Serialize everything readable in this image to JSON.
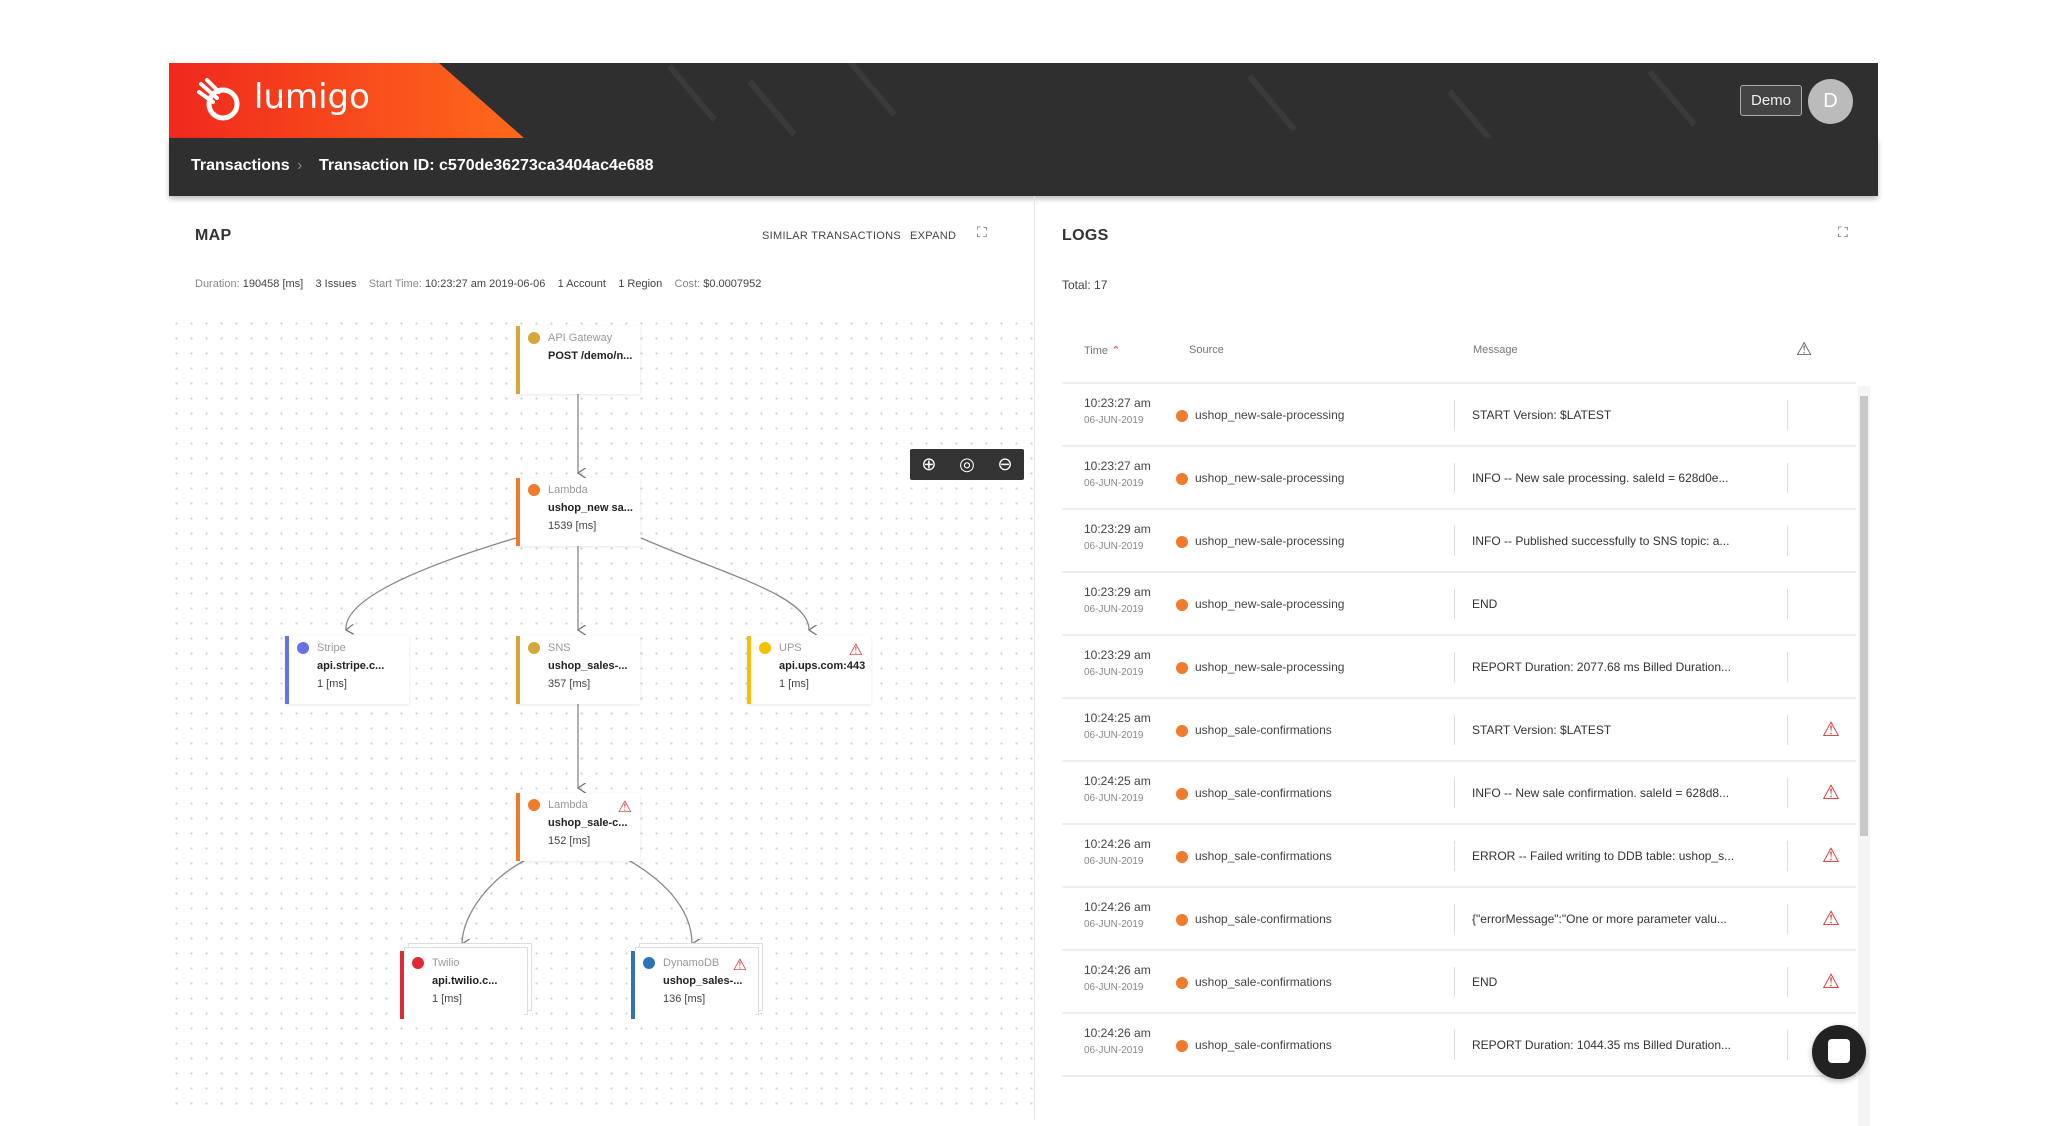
{
  "header": {
    "brand": "lumigo",
    "demo_label": "Demo",
    "avatar_initial": "D"
  },
  "breadcrumb": {
    "root": "Transactions",
    "separator": "›",
    "current": "Transaction ID: c570de36273ca3404ac4e688"
  },
  "map": {
    "title": "MAP",
    "similar_label": "SIMILAR TRANSACTIONS",
    "expand_label": "EXPAND",
    "stats": {
      "duration_label": "Duration:",
      "duration": "190458 [ms]",
      "issues": "3 Issues",
      "start_label": "Start Time:",
      "start": "10:23:27 am 2019-06-06",
      "accounts": "1 Account",
      "regions": "1 Region",
      "cost_label": "Cost:",
      "cost": "$0.0007952"
    },
    "nodes": [
      {
        "kind": "API Gateway",
        "name": "POST /demo/n...",
        "duration": "",
        "color": "#d9a63a",
        "warning": false
      },
      {
        "kind": "Lambda",
        "name": "ushop_new sa...",
        "duration": "1539 [ms]",
        "color": "#f07b2a",
        "warning": false
      },
      {
        "kind": "Stripe",
        "name": "api.stripe.c...",
        "duration": "1 [ms]",
        "color": "#6772e5",
        "warning": false
      },
      {
        "kind": "SNS",
        "name": "ushop_sales-...",
        "duration": "357 [ms]",
        "color": "#d9a63a",
        "warning": false
      },
      {
        "kind": "UPS",
        "name": "api.ups.com:443",
        "duration": "1 [ms]",
        "color": "#f5c000",
        "warning": true
      },
      {
        "kind": "Lambda",
        "name": "ushop_sale-c...",
        "duration": "152 [ms]",
        "color": "#f07b2a",
        "warning": true
      },
      {
        "kind": "Twilio",
        "name": "api.twilio.c...",
        "duration": "1 [ms]",
        "color": "#e02935",
        "warning": false
      },
      {
        "kind": "DynamoDB",
        "name": "ushop_sales-...",
        "duration": "136 [ms]",
        "color": "#2e73b8",
        "warning": true
      }
    ]
  },
  "logs": {
    "title": "LOGS",
    "total": "Total: 17",
    "columns": {
      "time": "Time",
      "source": "Source",
      "message": "Message"
    },
    "rows": [
      {
        "time": "10:23:27 am",
        "date": "06-JUN-2019",
        "source": "ushop_new-sale-processing",
        "message": "START Version: $LATEST",
        "warning": false
      },
      {
        "time": "10:23:27 am",
        "date": "06-JUN-2019",
        "source": "ushop_new-sale-processing",
        "message": "INFO -- New sale processing. saleId = 628d0e...",
        "warning": false
      },
      {
        "time": "10:23:29 am",
        "date": "06-JUN-2019",
        "source": "ushop_new-sale-processing",
        "message": "INFO -- Published successfully to SNS topic: a...",
        "warning": false
      },
      {
        "time": "10:23:29 am",
        "date": "06-JUN-2019",
        "source": "ushop_new-sale-processing",
        "message": "END",
        "warning": false
      },
      {
        "time": "10:23:29 am",
        "date": "06-JUN-2019",
        "source": "ushop_new-sale-processing",
        "message": "REPORT Duration: 2077.68 ms Billed Duration...",
        "warning": false
      },
      {
        "time": "10:24:25 am",
        "date": "06-JUN-2019",
        "source": "ushop_sale-confirmations",
        "message": "START Version: $LATEST",
        "warning": true
      },
      {
        "time": "10:24:25 am",
        "date": "06-JUN-2019",
        "source": "ushop_sale-confirmations",
        "message": "INFO -- New sale confirmation. saleId = 628d8...",
        "warning": true
      },
      {
        "time": "10:24:26 am",
        "date": "06-JUN-2019",
        "source": "ushop_sale-confirmations",
        "message": "ERROR -- Failed writing to DDB table: ushop_s...",
        "warning": true
      },
      {
        "time": "10:24:26 am",
        "date": "06-JUN-2019",
        "source": "ushop_sale-confirmations",
        "message": "{\"errorMessage\":\"One or more parameter valu...",
        "warning": true
      },
      {
        "time": "10:24:26 am",
        "date": "06-JUN-2019",
        "source": "ushop_sale-confirmations",
        "message": "END",
        "warning": true
      },
      {
        "time": "10:24:26 am",
        "date": "06-JUN-2019",
        "source": "ushop_sale-confirmations",
        "message": "REPORT Duration: 1044.35 ms Billed Duration...",
        "warning": true
      }
    ]
  }
}
